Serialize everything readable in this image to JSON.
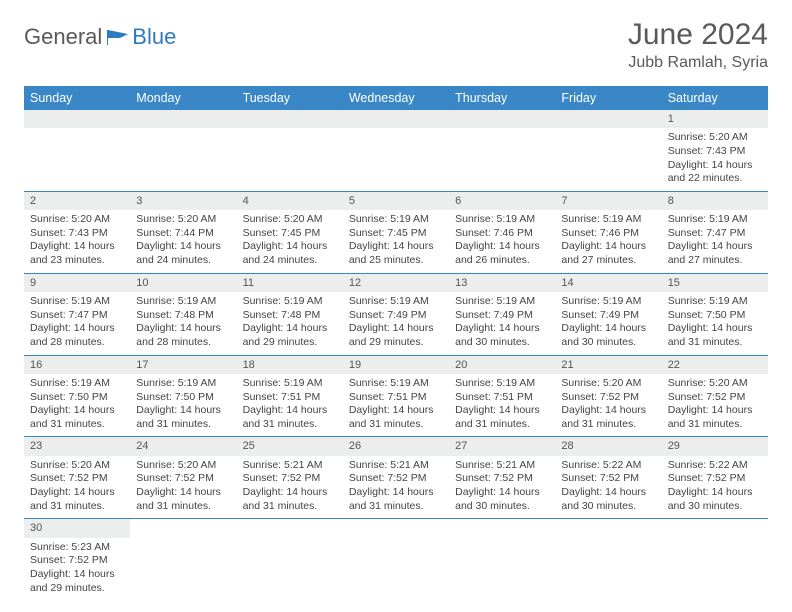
{
  "brand": {
    "general": "General",
    "blue": "Blue"
  },
  "title": "June 2024",
  "location": "Jubb Ramlah, Syria",
  "colors": {
    "header_bg": "#3a87c7",
    "header_text": "#ffffff",
    "daynum_bg": "#eceded",
    "row_border": "#3a87c7",
    "body_text": "#444444",
    "title_text": "#5a5a5a"
  },
  "weekdays": [
    "Sunday",
    "Monday",
    "Tuesday",
    "Wednesday",
    "Thursday",
    "Friday",
    "Saturday"
  ],
  "weeks": [
    [
      null,
      null,
      null,
      null,
      null,
      null,
      {
        "n": "1",
        "sr": "5:20 AM",
        "ss": "7:43 PM",
        "dl": "14 hours and 22 minutes."
      }
    ],
    [
      {
        "n": "2",
        "sr": "5:20 AM",
        "ss": "7:43 PM",
        "dl": "14 hours and 23 minutes."
      },
      {
        "n": "3",
        "sr": "5:20 AM",
        "ss": "7:44 PM",
        "dl": "14 hours and 24 minutes."
      },
      {
        "n": "4",
        "sr": "5:20 AM",
        "ss": "7:45 PM",
        "dl": "14 hours and 24 minutes."
      },
      {
        "n": "5",
        "sr": "5:19 AM",
        "ss": "7:45 PM",
        "dl": "14 hours and 25 minutes."
      },
      {
        "n": "6",
        "sr": "5:19 AM",
        "ss": "7:46 PM",
        "dl": "14 hours and 26 minutes."
      },
      {
        "n": "7",
        "sr": "5:19 AM",
        "ss": "7:46 PM",
        "dl": "14 hours and 27 minutes."
      },
      {
        "n": "8",
        "sr": "5:19 AM",
        "ss": "7:47 PM",
        "dl": "14 hours and 27 minutes."
      }
    ],
    [
      {
        "n": "9",
        "sr": "5:19 AM",
        "ss": "7:47 PM",
        "dl": "14 hours and 28 minutes."
      },
      {
        "n": "10",
        "sr": "5:19 AM",
        "ss": "7:48 PM",
        "dl": "14 hours and 28 minutes."
      },
      {
        "n": "11",
        "sr": "5:19 AM",
        "ss": "7:48 PM",
        "dl": "14 hours and 29 minutes."
      },
      {
        "n": "12",
        "sr": "5:19 AM",
        "ss": "7:49 PM",
        "dl": "14 hours and 29 minutes."
      },
      {
        "n": "13",
        "sr": "5:19 AM",
        "ss": "7:49 PM",
        "dl": "14 hours and 30 minutes."
      },
      {
        "n": "14",
        "sr": "5:19 AM",
        "ss": "7:49 PM",
        "dl": "14 hours and 30 minutes."
      },
      {
        "n": "15",
        "sr": "5:19 AM",
        "ss": "7:50 PM",
        "dl": "14 hours and 31 minutes."
      }
    ],
    [
      {
        "n": "16",
        "sr": "5:19 AM",
        "ss": "7:50 PM",
        "dl": "14 hours and 31 minutes."
      },
      {
        "n": "17",
        "sr": "5:19 AM",
        "ss": "7:50 PM",
        "dl": "14 hours and 31 minutes."
      },
      {
        "n": "18",
        "sr": "5:19 AM",
        "ss": "7:51 PM",
        "dl": "14 hours and 31 minutes."
      },
      {
        "n": "19",
        "sr": "5:19 AM",
        "ss": "7:51 PM",
        "dl": "14 hours and 31 minutes."
      },
      {
        "n": "20",
        "sr": "5:19 AM",
        "ss": "7:51 PM",
        "dl": "14 hours and 31 minutes."
      },
      {
        "n": "21",
        "sr": "5:20 AM",
        "ss": "7:52 PM",
        "dl": "14 hours and 31 minutes."
      },
      {
        "n": "22",
        "sr": "5:20 AM",
        "ss": "7:52 PM",
        "dl": "14 hours and 31 minutes."
      }
    ],
    [
      {
        "n": "23",
        "sr": "5:20 AM",
        "ss": "7:52 PM",
        "dl": "14 hours and 31 minutes."
      },
      {
        "n": "24",
        "sr": "5:20 AM",
        "ss": "7:52 PM",
        "dl": "14 hours and 31 minutes."
      },
      {
        "n": "25",
        "sr": "5:21 AM",
        "ss": "7:52 PM",
        "dl": "14 hours and 31 minutes."
      },
      {
        "n": "26",
        "sr": "5:21 AM",
        "ss": "7:52 PM",
        "dl": "14 hours and 31 minutes."
      },
      {
        "n": "27",
        "sr": "5:21 AM",
        "ss": "7:52 PM",
        "dl": "14 hours and 30 minutes."
      },
      {
        "n": "28",
        "sr": "5:22 AM",
        "ss": "7:52 PM",
        "dl": "14 hours and 30 minutes."
      },
      {
        "n": "29",
        "sr": "5:22 AM",
        "ss": "7:52 PM",
        "dl": "14 hours and 30 minutes."
      }
    ],
    [
      {
        "n": "30",
        "sr": "5:23 AM",
        "ss": "7:52 PM",
        "dl": "14 hours and 29 minutes."
      },
      null,
      null,
      null,
      null,
      null,
      null
    ]
  ],
  "labels": {
    "sunrise": "Sunrise: ",
    "sunset": "Sunset: ",
    "daylight": "Daylight: "
  }
}
